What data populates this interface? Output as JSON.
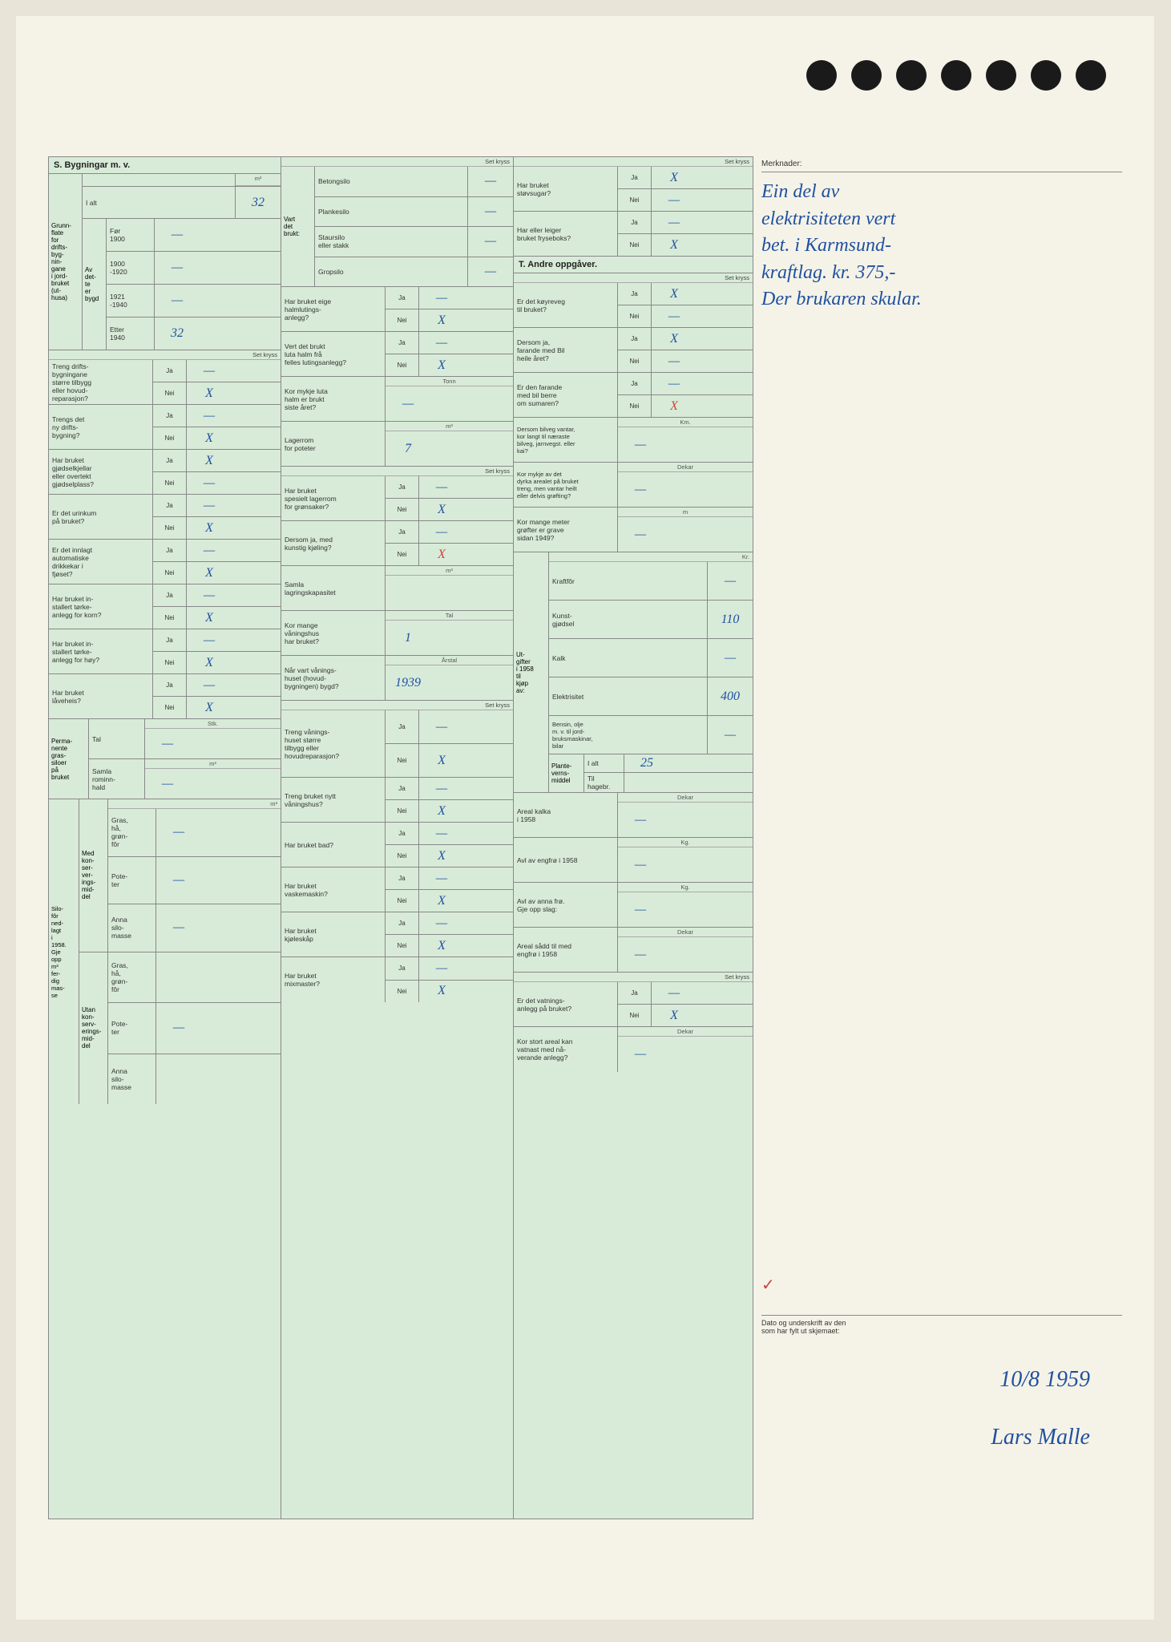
{
  "section_s": {
    "title": "S. Bygningar m. v.",
    "grunnflate": {
      "label": "Grunn-\nflate\nfor\ndrifts-\nbyg-\nnin-\ngane\ni jord-\nbruket\n(ut-\nhusa)",
      "ialt_label": "I alt",
      "ialt_value": "32",
      "unit": "m²",
      "av_dette_label": "Av\ndet-\nte\ner\nbygd",
      "periods": [
        {
          "label": "Før\n1900",
          "value": "—"
        },
        {
          "label": "1900\n-1920",
          "value": "—"
        },
        {
          "label": "1921\n-1940",
          "value": "—"
        },
        {
          "label": "Etter\n1940",
          "value": "32"
        }
      ]
    },
    "set_kryss": "Set kryss",
    "questions_col1": [
      {
        "q": "Treng drifts-\nbygningane\nstørre tilbygg\neller hovud-\nreparasjon?",
        "ja": "—",
        "nei": "X"
      },
      {
        "q": "Trengs det\nny drifts-\nbygning?",
        "ja": "—",
        "nei": "X"
      },
      {
        "q": "Har bruket\ngjødselkjellar\neller overtekt\ngjødselplass?",
        "ja": "X",
        "nei": "—"
      },
      {
        "q": "Er det urinkum\npå bruket?",
        "ja": "—",
        "nei": "X"
      },
      {
        "q": "Er det innlagt\nautomatiske\ndrikkekar i\nfjøset?",
        "ja": "—",
        "nei": "X"
      },
      {
        "q": "Har bruket in-\nstallert tørke-\nanlegg for korn?",
        "ja": "—",
        "nei": "X"
      },
      {
        "q": "Har bruket in-\nstallert tørke-\nanlegg for høy?",
        "ja": "—",
        "nei": "X"
      },
      {
        "q": "Har bruket\nlåveheis?",
        "ja": "—",
        "nei": "X"
      }
    ],
    "grassiloer": {
      "label": "Perma-\nnente\ngras-\nsiloer\npå\nbruket",
      "tal_label": "Tal",
      "tal_unit": "Stk.",
      "tal_value": "—",
      "rominn_label": "Samla\nrominn-\nhald",
      "rominn_unit": "m³",
      "rominn_value": "—"
    },
    "silofor": {
      "label": "Silo-\nfôr\nned-\nlagt\ni\n1958.\nGje\nopp\nm³\nfer-\ndig\nmas-\nse",
      "unit": "m³",
      "med_label": "Med\nkon-\nser-\nver-\nings-\nmid-\ndel",
      "utan_label": "Utan\nkon-\nserv-\nerings-\nmid-\ndel",
      "items": [
        {
          "label": "Gras,\nhå,\ngrøn-\nfôr",
          "value": "—"
        },
        {
          "label": "Pote-\nter",
          "value": "—"
        },
        {
          "label": "Anna\nsilo-\nmasse",
          "value": "—"
        }
      ],
      "items_utan": [
        {
          "label": "Gras,\nhå,\ngrøn-\nfôr",
          "value": ""
        },
        {
          "label": "Pote-\nter",
          "value": "—"
        },
        {
          "label": "Anna\nsilo-\nmasse",
          "value": ""
        }
      ]
    }
  },
  "section_mid": {
    "vart_brukt_label": "Vart\ndet\nbrukt:",
    "silo_types": [
      {
        "label": "Betongsilo",
        "value": "—"
      },
      {
        "label": "Plankesilo",
        "value": "—"
      },
      {
        "label": "Staursilo\neller stakk",
        "value": "—"
      },
      {
        "label": "Gropsilo",
        "value": "—"
      }
    ],
    "questions_col2": [
      {
        "q": "Har bruket eige\nhalmlutings-\nanlegg?",
        "ja": "—",
        "nei": "X"
      },
      {
        "q": "Vert det brukt\nluta halm frå\nfelles lutingsanlegg?",
        "ja": "—",
        "nei": "X"
      }
    ],
    "kor_mykje_luta": {
      "label": "Kor mykje luta\nhalm er brukt\nsiste året?",
      "unit": "Tonn",
      "value": "—"
    },
    "lagerrom_poteter": {
      "label": "Lagerrom\nfor poteter",
      "unit": "m³",
      "value": "7"
    },
    "questions_col2b": [
      {
        "q": "Har bruket\nspesielt lagerrom\nfor grønsaker?",
        "ja": "—",
        "nei": "X"
      },
      {
        "q": "Dersom ja, med\nkunstig kjøling?",
        "ja": "—",
        "nei": "X"
      }
    ],
    "samla_lagring": {
      "label": "Samla\nlagringskapasitet",
      "unit": "m³",
      "value": ""
    },
    "kor_mange_vaning": {
      "label": "Kor mange\nvåningshus\nhar bruket?",
      "unit": "Tal",
      "value": "1"
    },
    "nar_vart_vaning": {
      "label": "Når vart vånings-\nhuset (hovud-\nbygningen) bygd?",
      "unit": "Årstal",
      "value": "1939"
    },
    "questions_col2c": [
      {
        "q": "Treng vånings-\nhuset større\ntilbygg eller\nhovudreparasjon?",
        "ja": "—",
        "nei": "X"
      },
      {
        "q": "Treng bruket nytt\nvåningshus?",
        "ja": "—",
        "nei": "X"
      },
      {
        "q": "Har bruket bad?",
        "ja": "—",
        "nei": "X"
      },
      {
        "q": "Har bruket\nvaskemaskin?",
        "ja": "—",
        "nei": "X"
      },
      {
        "q": "Har bruket\nkjøleskåp",
        "ja": "—",
        "nei": "X"
      },
      {
        "q": "Har bruket\nmixmaster?",
        "ja": "—",
        "nei": "X"
      }
    ]
  },
  "section_right": {
    "questions_top": [
      {
        "q": "Har bruket\nstøvsugar?",
        "ja": "X",
        "nei": "—"
      },
      {
        "q": "Har eller leiger\nbruket fryseboks?",
        "ja": "—",
        "nei": "X"
      }
    ],
    "section_t_title": "T. Andre oppgåver.",
    "questions_t": [
      {
        "q": "Er det køyreveg\ntil bruket?",
        "ja": "X",
        "nei": "—"
      },
      {
        "q": "Dersom ja,\nfarande med Bil\nheile året?",
        "ja": "X",
        "nei": "—"
      },
      {
        "q": "Er den farande\nmed bil berre\nom sumaren?",
        "ja": "—",
        "nei": "X"
      }
    ],
    "bilveg": {
      "label": "Dersom bilveg vantar,\nkor langt til næraste\nbilveg, jarnvegst. eller\nkai?",
      "unit": "Km.",
      "value": "—"
    },
    "dyrka_areal": {
      "label": "Kor mykje av det\ndyrka arealet på bruket\ntreng, men vantar heilt\neller delvis grøfting?",
      "unit": "Dekar",
      "value": "—"
    },
    "grofter": {
      "label": "Kor mange meter\ngrøfter er grave\nsidan 1949?",
      "unit": "m",
      "value": "—"
    },
    "utgifter": {
      "label": "Ut-\ngifter\ni 1958\ntil\nkjøp\nav:",
      "unit": "Kr.",
      "items": [
        {
          "label": "Kraftfôr",
          "value": "—"
        },
        {
          "label": "Kunst-\ngjødsel",
          "value": "110"
        },
        {
          "label": "Kalk",
          "value": "—"
        },
        {
          "label": "Elektrisitet",
          "value": "400"
        },
        {
          "label": "Bensin, olje\nm. v. til jord-\nbruksmaskinar,\nbilar",
          "value": "—"
        }
      ],
      "plante": {
        "label": "Plante-\nverns-\nmiddel",
        "ialt_label": "I alt",
        "ialt_value": "25",
        "hagebr_label": "Til\nhagebr.",
        "hagebr_value": ""
      }
    },
    "areal_kalka": {
      "label": "Areal kalka\ni 1958",
      "unit": "Dekar",
      "value": "—"
    },
    "avl_engfro": {
      "label": "Avl av engfrø i 1958",
      "unit": "Kg.",
      "value": "—"
    },
    "avl_anna": {
      "label": "Avl av anna frø.\nGje opp slag:",
      "unit": "Kg.",
      "value": "—"
    },
    "areal_sadd": {
      "label": "Areal sådd til med\nengfrø i 1958",
      "unit": "Dekar",
      "value": "—"
    },
    "vatnings": {
      "q": "Er det vatnings-\nanlegg på bruket?",
      "ja": "—",
      "nei": "X"
    },
    "kor_stort": {
      "label": "Kor stort areal kan\nvatnast med nå-\nverande anlegg?",
      "unit": "Dekar",
      "value": "—"
    }
  },
  "merknader": {
    "header": "Merknader:",
    "text": "Ein del av\nelektrisiteten vert\nbet. i Karmsund-\nkraftlag. kr. 375,-\nDer brukaren skular."
  },
  "signature": {
    "label": "Dato og underskrift av den\nsom har fylt ut skjemaet:",
    "date": "10/8 1959",
    "name": "Lars Malle",
    "red_mark": "✓"
  },
  "labels": {
    "ja": "Ja",
    "nei": "Nei",
    "set_kryss": "Set kryss"
  }
}
